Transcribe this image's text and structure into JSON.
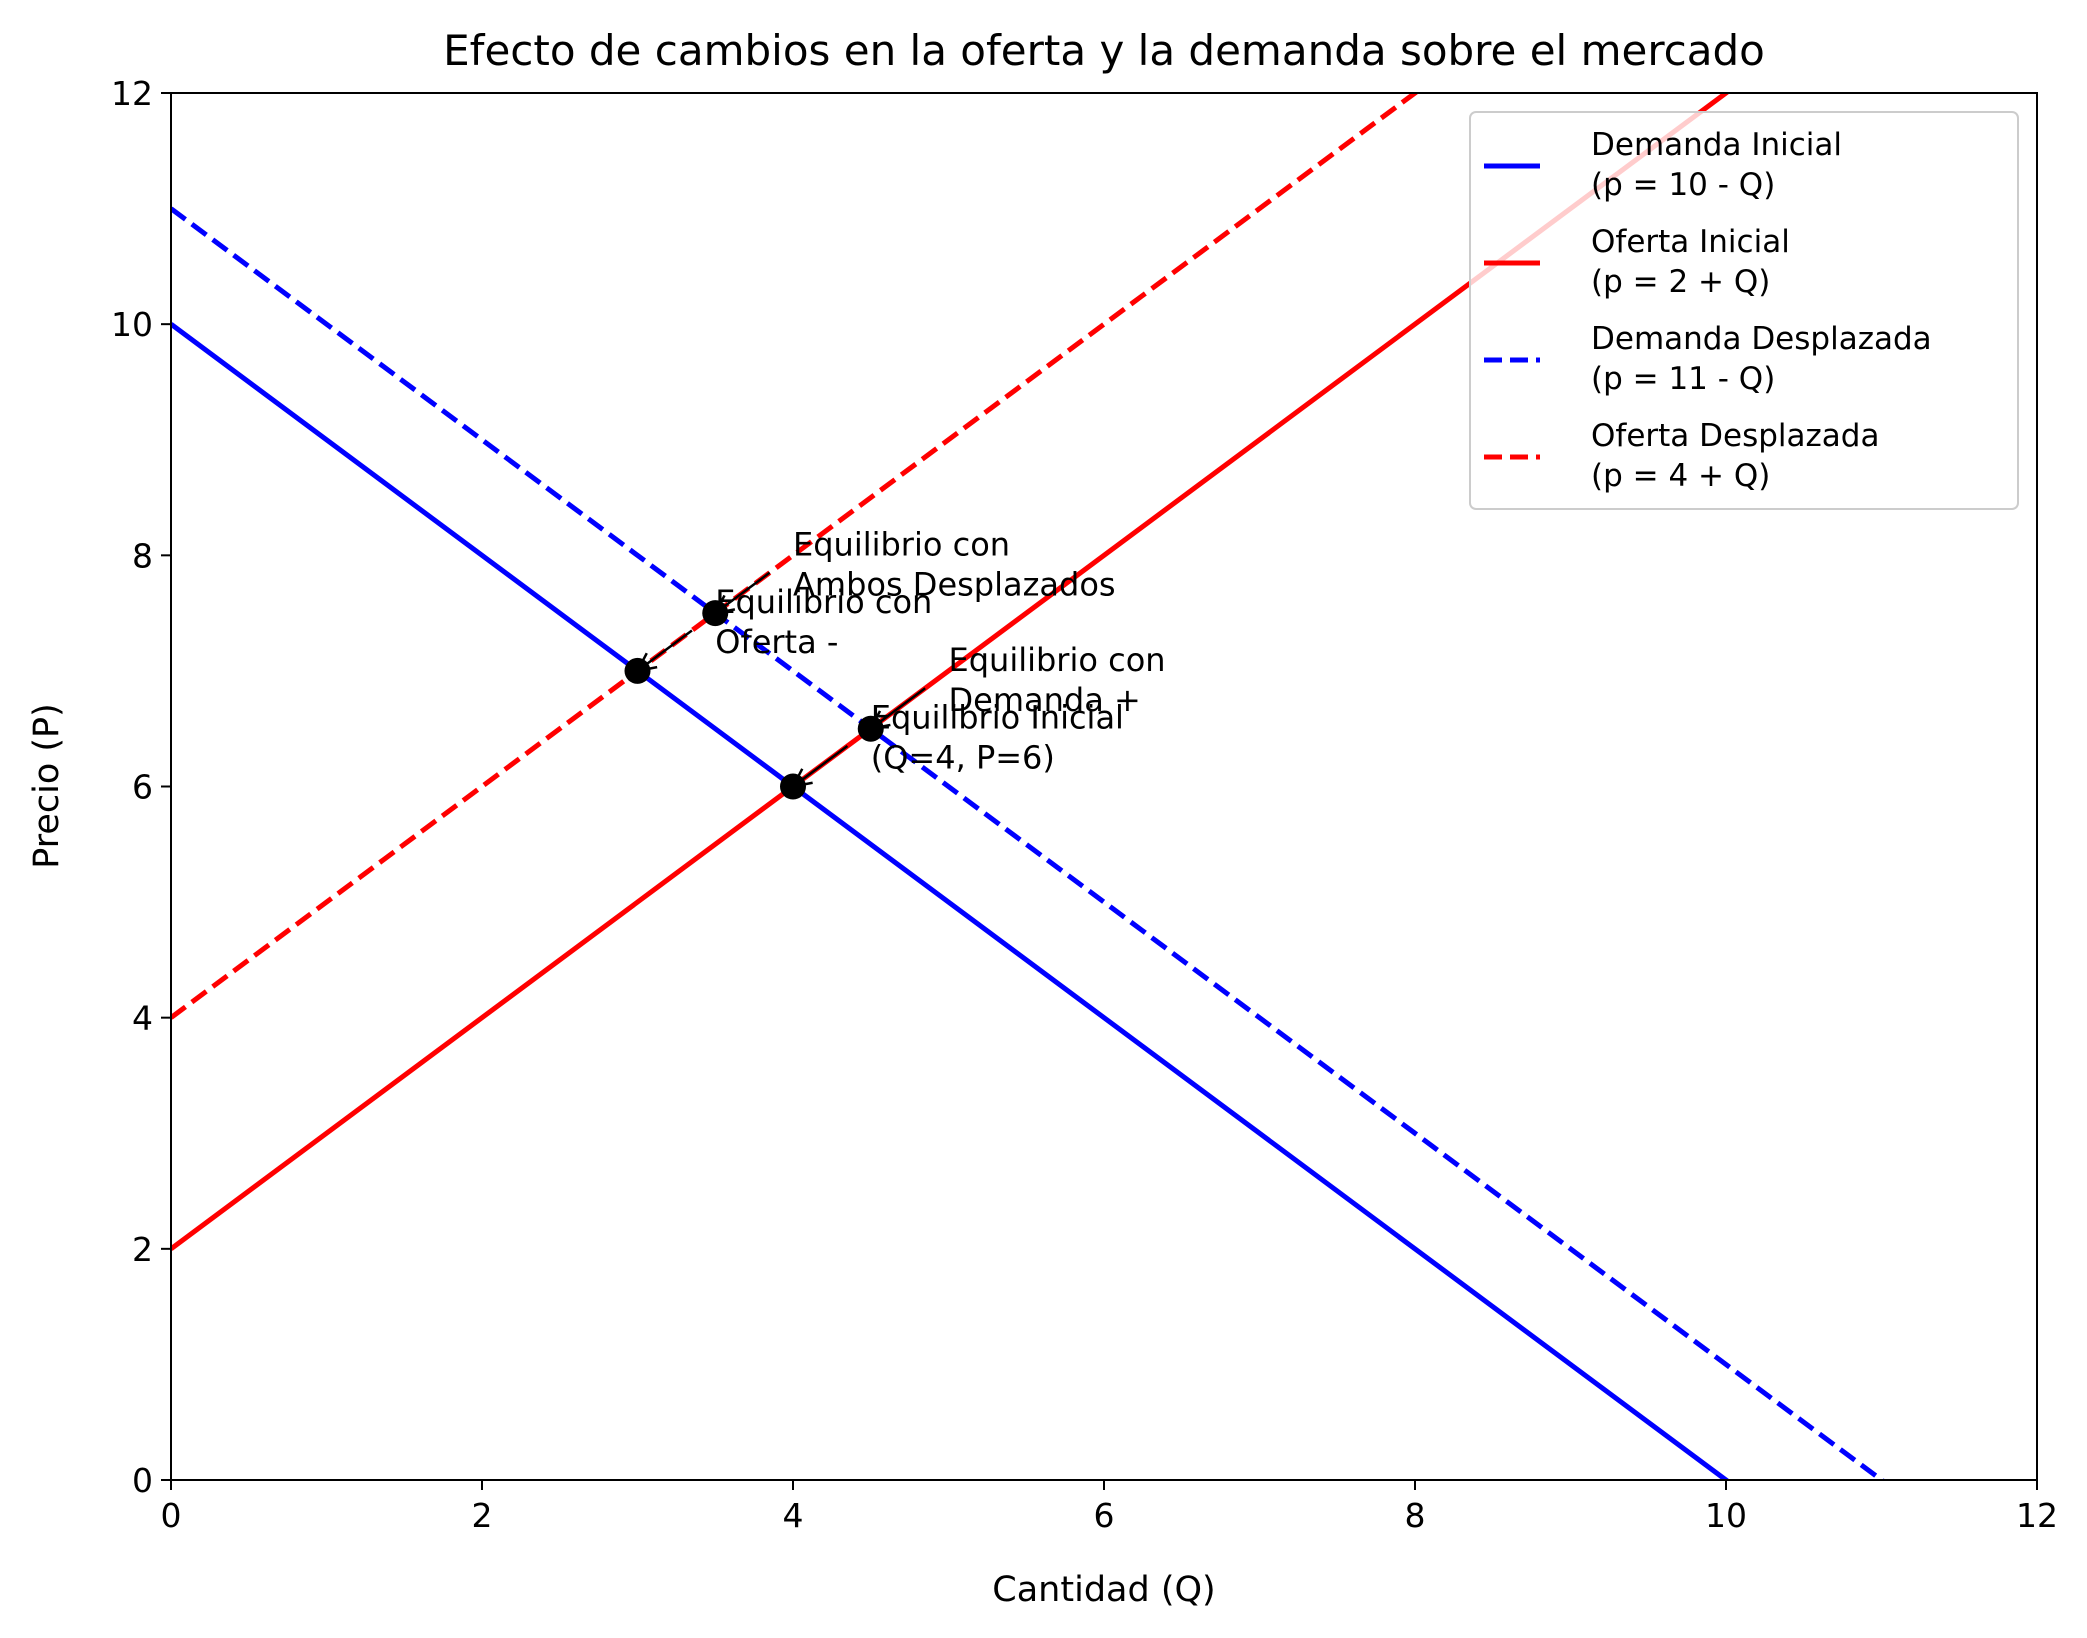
{
  "chart_data": {
    "type": "line",
    "title": "Efecto de cambios en la oferta y la demanda sobre el mercado",
    "xlabel": "Cantidad (Q)",
    "ylabel": "Precio (P)",
    "xlim": [
      0,
      12
    ],
    "ylim": [
      0,
      12
    ],
    "xticks": [
      0,
      2,
      4,
      6,
      8,
      10,
      12
    ],
    "yticks": [
      0,
      2,
      4,
      6,
      8,
      10,
      12
    ],
    "grid": false,
    "legend_position": "upper right",
    "series": [
      {
        "name": "Demanda Inicial",
        "name_line2": "(p = 10 - Q)",
        "color": "#0000ff",
        "dash": "solid",
        "x": [
          0,
          12
        ],
        "y": [
          10,
          -2
        ]
      },
      {
        "name": "Oferta Inicial",
        "name_line2": "(p = 2 + Q)",
        "color": "#ff0000",
        "dash": "solid",
        "x": [
          0,
          12
        ],
        "y": [
          2,
          14
        ]
      },
      {
        "name": "Demanda Desplazada",
        "name_line2": "(p = 11 - Q)",
        "color": "#0000ff",
        "dash": "dashed",
        "x": [
          0,
          12
        ],
        "y": [
          11,
          -1
        ]
      },
      {
        "name": "Oferta Desplazada",
        "name_line2": "(p = 4 + Q)",
        "color": "#ff0000",
        "dash": "dashed",
        "x": [
          0,
          12
        ],
        "y": [
          4,
          16
        ]
      }
    ],
    "points": [
      {
        "x": 4,
        "y": 6,
        "label": [
          "Equilibrio Inicial",
          "(Q=4, P=6)"
        ],
        "text_x": 4.5,
        "text_y": 6.5
      },
      {
        "x": 3,
        "y": 7,
        "label": [
          "Equilibrio con",
          "Oferta -"
        ],
        "text_x": 3.5,
        "text_y": 7.5
      },
      {
        "x": 4.5,
        "y": 6.5,
        "label": [
          "Equilibrio con",
          "Demanda +"
        ],
        "text_x": 5.0,
        "text_y": 7.0
      },
      {
        "x": 3.5,
        "y": 7.5,
        "label": [
          "Equilibrio con",
          "Ambos Desplazados"
        ],
        "text_x": 4.0,
        "text_y": 8.0
      }
    ]
  }
}
